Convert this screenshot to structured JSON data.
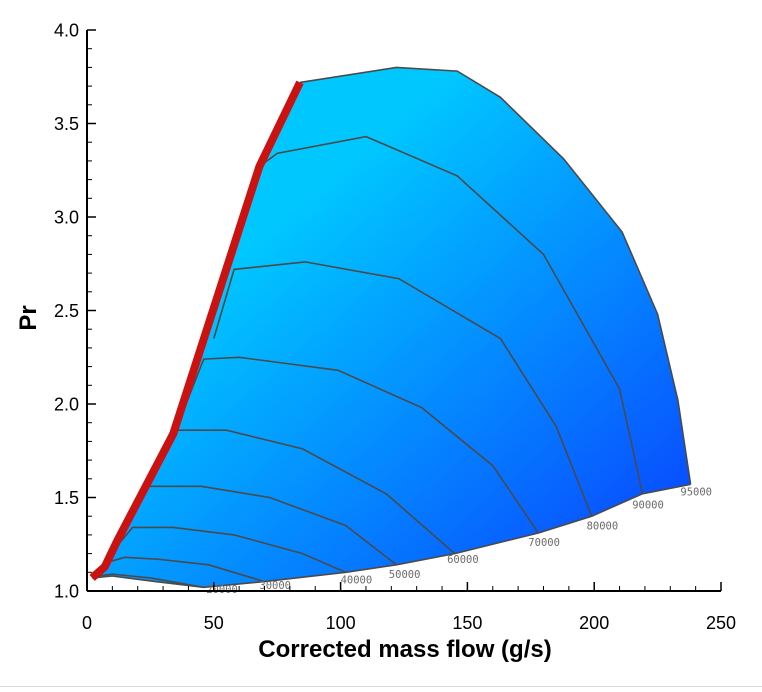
{
  "chart_data": {
    "type": "line",
    "title": "",
    "xlabel": "Corrected mass flow (g/s)",
    "ylabel": "Pr",
    "xlim": [
      0,
      250
    ],
    "ylim": [
      1.0,
      4.0
    ],
    "x_ticks": [
      "0",
      "50",
      "100",
      "150",
      "200",
      "250"
    ],
    "y_ticks": [
      "1.0",
      "1.5",
      "2.0",
      "2.5",
      "3.0",
      "3.5",
      "4.0"
    ],
    "surge_line_color": "#cc1111",
    "fill_colors": [
      "#00c8ff",
      "#0a3cff"
    ],
    "speed_line_color": "#4a4a4a",
    "surge_line": [
      {
        "x": 2,
        "y": 1.07
      },
      {
        "x": 7,
        "y": 1.13
      },
      {
        "x": 12,
        "y": 1.27
      },
      {
        "x": 34,
        "y": 1.84
      },
      {
        "x": 68,
        "y": 3.27
      },
      {
        "x": 84,
        "y": 3.72
      }
    ],
    "boundary_top": [
      {
        "x": 84,
        "y": 3.72
      },
      {
        "x": 122,
        "y": 3.8
      },
      {
        "x": 146,
        "y": 3.78
      },
      {
        "x": 163,
        "y": 3.64
      },
      {
        "x": 188,
        "y": 3.31
      },
      {
        "x": 211,
        "y": 2.92
      },
      {
        "x": 225,
        "y": 2.48
      },
      {
        "x": 233,
        "y": 2.02
      },
      {
        "x": 238,
        "y": 1.57
      }
    ],
    "boundary_bottom": [
      {
        "x": 238,
        "y": 1.57
      },
      {
        "x": 219,
        "y": 1.52
      },
      {
        "x": 199,
        "y": 1.4
      },
      {
        "x": 178,
        "y": 1.31
      },
      {
        "x": 145,
        "y": 1.2
      },
      {
        "x": 122,
        "y": 1.14
      },
      {
        "x": 102,
        "y": 1.1
      },
      {
        "x": 70,
        "y": 1.05
      },
      {
        "x": 46,
        "y": 1.02
      },
      {
        "x": 27,
        "y": 1.05
      },
      {
        "x": 10,
        "y": 1.08
      },
      {
        "x": 2,
        "y": 1.07
      }
    ],
    "series": [
      {
        "name": "20000",
        "points": [
          {
            "x": 4,
            "y": 1.08
          },
          {
            "x": 10,
            "y": 1.09
          },
          {
            "x": 25,
            "y": 1.07
          },
          {
            "x": 46,
            "y": 1.02
          }
        ],
        "label_at": {
          "x": 47,
          "y": 0.99
        }
      },
      {
        "name": "30000",
        "points": [
          {
            "x": 7,
            "y": 1.15
          },
          {
            "x": 15,
            "y": 1.18
          },
          {
            "x": 28,
            "y": 1.17
          },
          {
            "x": 48,
            "y": 1.14
          },
          {
            "x": 70,
            "y": 1.05
          }
        ],
        "label_at": {
          "x": 68,
          "y": 1.01
        }
      },
      {
        "name": "40000",
        "points": [
          {
            "x": 10,
            "y": 1.21
          },
          {
            "x": 18,
            "y": 1.34
          },
          {
            "x": 34,
            "y": 1.34
          },
          {
            "x": 58,
            "y": 1.3
          },
          {
            "x": 85,
            "y": 1.2
          },
          {
            "x": 102,
            "y": 1.1
          }
        ],
        "label_at": {
          "x": 100,
          "y": 1.04
        }
      },
      {
        "name": "50000",
        "points": [
          {
            "x": 16,
            "y": 1.39
          },
          {
            "x": 24,
            "y": 1.56
          },
          {
            "x": 45,
            "y": 1.56
          },
          {
            "x": 72,
            "y": 1.5
          },
          {
            "x": 102,
            "y": 1.35
          },
          {
            "x": 122,
            "y": 1.14
          }
        ],
        "label_at": {
          "x": 119,
          "y": 1.07
        }
      },
      {
        "name": "60000",
        "points": [
          {
            "x": 24,
            "y": 1.6
          },
          {
            "x": 34,
            "y": 1.86
          },
          {
            "x": 55,
            "y": 1.86
          },
          {
            "x": 85,
            "y": 1.76
          },
          {
            "x": 118,
            "y": 1.52
          },
          {
            "x": 145,
            "y": 1.2
          }
        ],
        "label_at": {
          "x": 142,
          "y": 1.15
        }
      },
      {
        "name": "70000",
        "points": [
          {
            "x": 35,
            "y": 1.86
          },
          {
            "x": 46,
            "y": 2.24
          },
          {
            "x": 60,
            "y": 2.25
          },
          {
            "x": 99,
            "y": 2.18
          },
          {
            "x": 132,
            "y": 1.98
          },
          {
            "x": 160,
            "y": 1.67
          },
          {
            "x": 178,
            "y": 1.31
          }
        ],
        "label_at": {
          "x": 174,
          "y": 1.24
        }
      },
      {
        "name": "80000",
        "points": [
          {
            "x": 50,
            "y": 2.35
          },
          {
            "x": 58,
            "y": 2.72
          },
          {
            "x": 86,
            "y": 2.76
          },
          {
            "x": 123,
            "y": 2.67
          },
          {
            "x": 163,
            "y": 2.35
          },
          {
            "x": 185,
            "y": 1.88
          },
          {
            "x": 199,
            "y": 1.4
          }
        ],
        "label_at": {
          "x": 197,
          "y": 1.33
        }
      },
      {
        "name": "90000",
        "points": [
          {
            "x": 68,
            "y": 3.27
          },
          {
            "x": 75,
            "y": 3.34
          },
          {
            "x": 110,
            "y": 3.43
          },
          {
            "x": 146,
            "y": 3.22
          },
          {
            "x": 180,
            "y": 2.8
          },
          {
            "x": 210,
            "y": 2.08
          },
          {
            "x": 219,
            "y": 1.52
          }
        ],
        "label_at": {
          "x": 215,
          "y": 1.44
        }
      }
    ],
    "boundary_label": {
      "name": "95000",
      "label_at": {
        "x": 234,
        "y": 1.51
      }
    }
  }
}
